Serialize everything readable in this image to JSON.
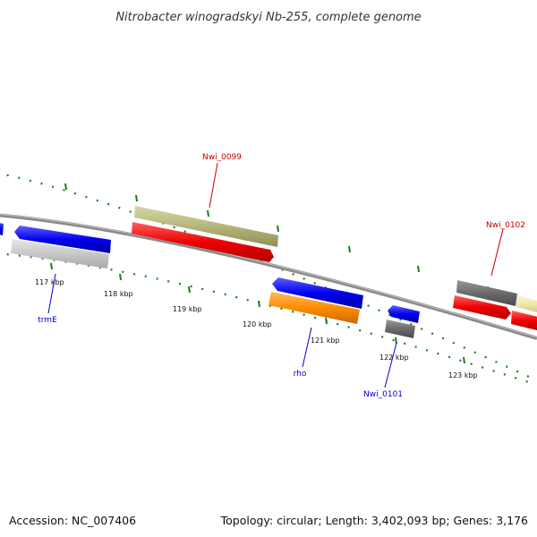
{
  "title": "Nitrobacter winogradskyi Nb-255, complete genome",
  "footer": {
    "accession": "Accession: NC_007406",
    "summary": "Topology: circular; Length: 3,402,093 bp; Genes: 3,176"
  },
  "tick_labels": [
    "117 kbp",
    "118 kbp",
    "119 kbp",
    "120 kbp",
    "121 kbp",
    "122 kbp",
    "123 kbp"
  ],
  "gene_labels": {
    "nwi_0099": "Nwi_0099",
    "nwi_0102": "Nwi_0102",
    "trmE": "trmE",
    "rho": "rho",
    "nwi_0101": "Nwi_0101"
  },
  "colors": {
    "label_forward": "#cc0000",
    "label_reverse": "#0000cc",
    "backbone": "#888888",
    "ticks": "#1a7f1a",
    "feature_red": "#ee0000",
    "feature_khaki": "#b5b57a",
    "feature_blue": "#0000ee",
    "feature_gray": "#6a6a6a",
    "feature_lightgray": "#c8c8c8",
    "feature_orange": "#ff8c00",
    "feature_paleyellow": "#eee8aa"
  }
}
